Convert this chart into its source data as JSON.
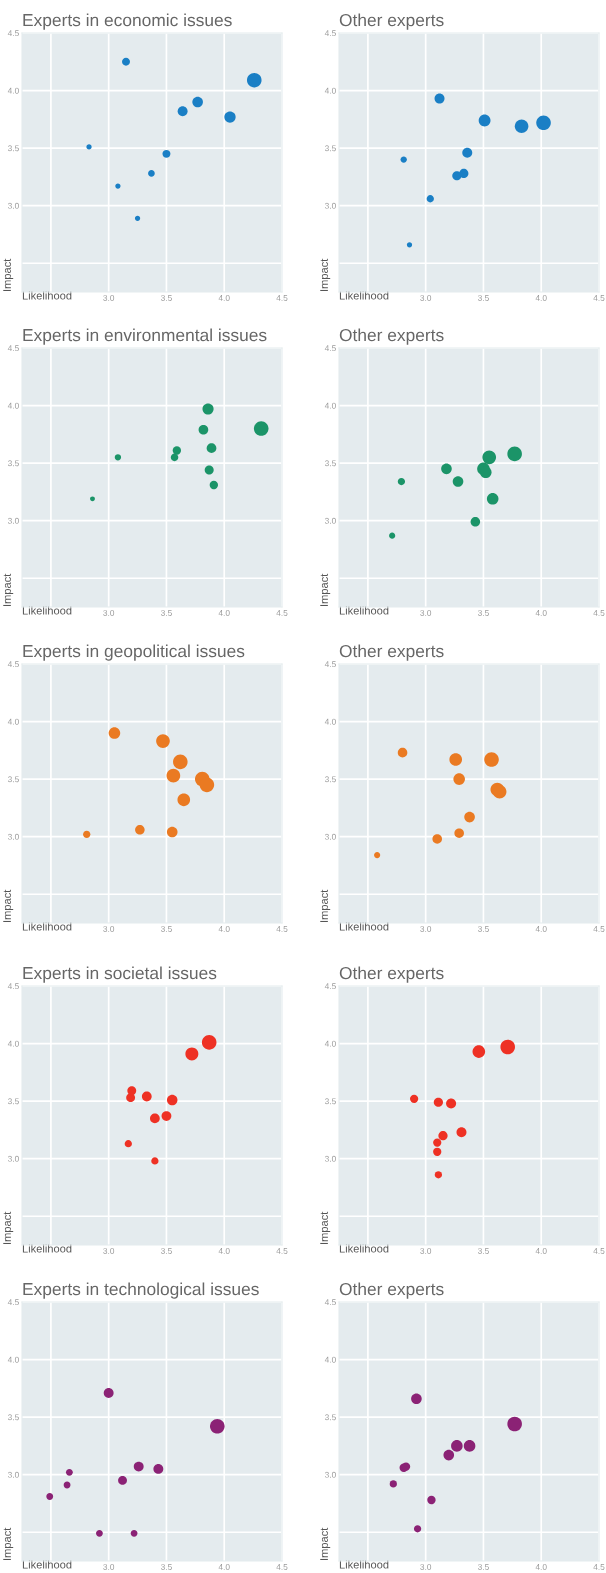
{
  "chart_data": [
    {
      "type": "bubble",
      "title": "Experts in economic issues",
      "xlabel": "Likelihood",
      "ylabel": "Impact",
      "xlim": [
        2.25,
        4.5
      ],
      "ylim": [
        2.25,
        4.5
      ],
      "xticks": [
        {
          "value": 2.5,
          "label": null
        },
        {
          "value": 3.0,
          "label": "3.0"
        },
        {
          "value": 3.5,
          "label": "3.5"
        },
        {
          "value": 4.0,
          "label": "4.0"
        },
        {
          "value": 4.5,
          "label": "4.5"
        }
      ],
      "yticks": [
        {
          "value": 2.5,
          "label": null
        },
        {
          "value": 3.0,
          "label": "3.0"
        },
        {
          "value": 3.5,
          "label": "3.5"
        },
        {
          "value": 4.0,
          "label": "4.0"
        },
        {
          "value": 4.5,
          "label": "4.5"
        }
      ],
      "grid": true,
      "series": [
        {
          "color": "#1a7fc5",
          "x": [
            3.15,
            2.83,
            3.08,
            3.25,
            3.37,
            3.5,
            3.64,
            3.77,
            4.05,
            4.26
          ],
          "values": [
            4.25,
            3.51,
            3.17,
            2.89,
            3.28,
            3.45,
            3.82,
            3.9,
            3.77,
            4.09
          ],
          "sizes": [
            0.3,
            0.13,
            0.13,
            0.13,
            0.21,
            0.3,
            0.46,
            0.53,
            0.6,
            1
          ]
        }
      ]
    },
    {
      "type": "bubble",
      "title": "Other experts",
      "xlabel": "Likelihood",
      "ylabel": "Impact",
      "xlim": [
        2.25,
        4.5
      ],
      "ylim": [
        2.25,
        4.5
      ],
      "xticks": [
        {
          "value": 2.5,
          "label": null
        },
        {
          "value": 3.0,
          "label": "3.0"
        },
        {
          "value": 3.5,
          "label": "3.5"
        },
        {
          "value": 4.0,
          "label": "4.0"
        },
        {
          "value": 4.5,
          "label": "4.5"
        }
      ],
      "yticks": [
        {
          "value": 2.5,
          "label": null
        },
        {
          "value": 3.0,
          "label": "3.0"
        },
        {
          "value": 3.5,
          "label": "3.5"
        },
        {
          "value": 4.0,
          "label": "4.0"
        },
        {
          "value": 4.5,
          "label": "4.5"
        }
      ],
      "grid": true,
      "series": [
        {
          "color": "#1a7fc5",
          "x": [
            2.81,
            2.86,
            3.04,
            3.12,
            3.27,
            3.33,
            3.36,
            3.51,
            3.83,
            4.02
          ],
          "values": [
            3.4,
            2.66,
            3.06,
            3.93,
            3.26,
            3.28,
            3.46,
            3.74,
            3.69,
            3.72
          ],
          "sizes": [
            0.19,
            0.13,
            0.25,
            0.47,
            0.4,
            0.4,
            0.47,
            0.66,
            0.87,
            1
          ]
        }
      ]
    },
    {
      "type": "bubble",
      "title": "Experts in environmental issues",
      "xlabel": "Likelihood",
      "ylabel": "Impact",
      "xlim": [
        2.25,
        4.5
      ],
      "ylim": [
        2.25,
        4.5
      ],
      "xticks": [
        {
          "value": 2.5,
          "label": null
        },
        {
          "value": 3.0,
          "label": "3.0"
        },
        {
          "value": 3.5,
          "label": "3.5"
        },
        {
          "value": 4.0,
          "label": "4.0"
        },
        {
          "value": 4.5,
          "label": "4.5"
        }
      ],
      "yticks": [
        {
          "value": 2.5,
          "label": null
        },
        {
          "value": 3.0,
          "label": "3.0"
        },
        {
          "value": 3.5,
          "label": "3.5"
        },
        {
          "value": 4.0,
          "label": "4.0"
        },
        {
          "value": 4.5,
          "label": "4.5"
        }
      ],
      "grid": true,
      "series": [
        {
          "color": "#1b9468",
          "x": [
            2.86,
            3.08,
            3.57,
            3.59,
            3.82,
            3.86,
            3.89,
            3.87,
            3.91,
            4.32
          ],
          "values": [
            3.19,
            3.55,
            3.55,
            3.61,
            3.79,
            3.97,
            3.63,
            3.44,
            3.31,
            3.8
          ],
          "sizes": [
            0.11,
            0.19,
            0.27,
            0.33,
            0.44,
            0.58,
            0.44,
            0.38,
            0.33,
            1
          ]
        }
      ]
    },
    {
      "type": "bubble",
      "title": "Other experts",
      "xlabel": "Likelihood",
      "ylabel": "Impact",
      "xlim": [
        2.25,
        4.5
      ],
      "ylim": [
        2.25,
        4.5
      ],
      "xticks": [
        {
          "value": 2.5,
          "label": null
        },
        {
          "value": 3.0,
          "label": "3.0"
        },
        {
          "value": 3.5,
          "label": "3.5"
        },
        {
          "value": 4.0,
          "label": "4.0"
        },
        {
          "value": 4.5,
          "label": "4.5"
        }
      ],
      "yticks": [
        {
          "value": 2.5,
          "label": null
        },
        {
          "value": 3.0,
          "label": "3.0"
        },
        {
          "value": 3.5,
          "label": "3.5"
        },
        {
          "value": 4.0,
          "label": "4.0"
        },
        {
          "value": 4.5,
          "label": "4.5"
        }
      ],
      "grid": true,
      "series": [
        {
          "color": "#1b9468",
          "x": [
            2.71,
            2.79,
            3.18,
            3.28,
            3.43,
            3.5,
            3.52,
            3.55,
            3.58,
            3.77
          ],
          "values": [
            2.87,
            3.34,
            3.45,
            3.34,
            2.99,
            3.45,
            3.42,
            3.55,
            3.19,
            3.58
          ],
          "sizes": [
            0.18,
            0.25,
            0.53,
            0.53,
            0.43,
            0.75,
            0.63,
            0.88,
            0.63,
            1
          ]
        }
      ]
    },
    {
      "type": "bubble",
      "title": "Experts in geopolitical issues",
      "xlabel": "Likelihood",
      "ylabel": "Impact",
      "xlim": [
        2.25,
        4.5
      ],
      "ylim": [
        2.25,
        4.5
      ],
      "xticks": [
        {
          "value": 2.5,
          "label": null
        },
        {
          "value": 3.0,
          "label": "3.0"
        },
        {
          "value": 3.5,
          "label": "3.5"
        },
        {
          "value": 4.0,
          "label": "4.0"
        },
        {
          "value": 4.5,
          "label": "4.5"
        }
      ],
      "yticks": [
        {
          "value": 2.5,
          "label": null
        },
        {
          "value": 3.0,
          "label": "3.0"
        },
        {
          "value": 3.5,
          "label": "3.5"
        },
        {
          "value": 4.0,
          "label": "4.0"
        },
        {
          "value": 4.5,
          "label": "4.5"
        }
      ],
      "grid": true,
      "series": [
        {
          "color": "#ea7a22",
          "x": [
            2.81,
            3.05,
            3.27,
            3.47,
            3.55,
            3.56,
            3.62,
            3.65,
            3.81,
            3.85
          ],
          "values": [
            3.02,
            3.9,
            3.06,
            3.83,
            3.04,
            3.53,
            3.65,
            3.32,
            3.5,
            3.45
          ],
          "sizes": [
            0.25,
            0.63,
            0.43,
            0.88,
            0.53,
            0.88,
            1,
            0.75,
            1,
            1
          ]
        }
      ]
    },
    {
      "type": "bubble",
      "title": "Other experts",
      "xlabel": "Likelihood",
      "ylabel": "Impact",
      "xlim": [
        2.25,
        4.5
      ],
      "ylim": [
        2.25,
        4.5
      ],
      "xticks": [
        {
          "value": 2.5,
          "label": null
        },
        {
          "value": 3.0,
          "label": "3.0"
        },
        {
          "value": 3.5,
          "label": "3.5"
        },
        {
          "value": 4.0,
          "label": "4.0"
        },
        {
          "value": 4.5,
          "label": "4.5"
        }
      ],
      "yticks": [
        {
          "value": 2.5,
          "label": null
        },
        {
          "value": 3.0,
          "label": "3.0"
        },
        {
          "value": 3.5,
          "label": "3.5"
        },
        {
          "value": 4.0,
          "label": "4.0"
        },
        {
          "value": 4.5,
          "label": "4.5"
        }
      ],
      "grid": true,
      "series": [
        {
          "color": "#ea7a22",
          "x": [
            2.58,
            2.8,
            3.1,
            3.29,
            3.26,
            3.29,
            3.38,
            3.57,
            3.62,
            3.64
          ],
          "values": [
            2.84,
            3.73,
            2.98,
            3.03,
            3.67,
            3.5,
            3.17,
            3.67,
            3.41,
            3.39
          ],
          "sizes": [
            0.18,
            0.43,
            0.43,
            0.43,
            0.75,
            0.63,
            0.53,
            1,
            0.88,
            0.88
          ]
        }
      ]
    },
    {
      "type": "bubble",
      "title": "Experts in societal issues",
      "xlabel": "Likelihood",
      "ylabel": "Impact",
      "xlim": [
        2.25,
        4.5
      ],
      "ylim": [
        2.25,
        4.5
      ],
      "xticks": [
        {
          "value": 2.5,
          "label": null
        },
        {
          "value": 3.0,
          "label": "3.0"
        },
        {
          "value": 3.5,
          "label": "3.5"
        },
        {
          "value": 4.0,
          "label": "4.0"
        },
        {
          "value": 4.5,
          "label": "4.5"
        }
      ],
      "yticks": [
        {
          "value": 2.5,
          "label": null
        },
        {
          "value": 3.0,
          "label": "3.0"
        },
        {
          "value": 3.5,
          "label": "3.5"
        },
        {
          "value": 4.0,
          "label": "4.0"
        },
        {
          "value": 4.5,
          "label": "4.5"
        }
      ],
      "grid": true,
      "series": [
        {
          "color": "#ee3124",
          "x": [
            3.17,
            3.4,
            3.19,
            3.2,
            3.33,
            3.4,
            3.5,
            3.55,
            3.72,
            3.87
          ],
          "values": [
            3.13,
            2.98,
            3.53,
            3.59,
            3.54,
            3.35,
            3.37,
            3.51,
            3.91,
            4.01
          ],
          "sizes": [
            0.25,
            0.25,
            0.37,
            0.37,
            0.45,
            0.45,
            0.45,
            0.52,
            0.79,
            1
          ]
        }
      ]
    },
    {
      "type": "bubble",
      "title": "Other experts",
      "xlabel": "Likelihood",
      "ylabel": "Impact",
      "xlim": [
        2.25,
        4.5
      ],
      "ylim": [
        2.25,
        4.5
      ],
      "xticks": [
        {
          "value": 2.5,
          "label": null
        },
        {
          "value": 3.0,
          "label": "3.0"
        },
        {
          "value": 3.5,
          "label": "3.5"
        },
        {
          "value": 4.0,
          "label": "4.0"
        },
        {
          "value": 4.5,
          "label": "4.5"
        }
      ],
      "yticks": [
        {
          "value": 2.5,
          "label": null
        },
        {
          "value": 3.0,
          "label": "3.0"
        },
        {
          "value": 3.5,
          "label": "3.5"
        },
        {
          "value": 4.0,
          "label": "4.0"
        },
        {
          "value": 4.5,
          "label": "4.5"
        }
      ],
      "grid": true,
      "series": [
        {
          "color": "#ee3124",
          "x": [
            2.9,
            3.11,
            3.1,
            3.1,
            3.15,
            3.11,
            3.22,
            3.31,
            3.46,
            3.71
          ],
          "values": [
            3.52,
            2.86,
            3.06,
            3.14,
            3.2,
            3.49,
            3.48,
            3.23,
            3.93,
            3.97
          ],
          "sizes": [
            0.32,
            0.25,
            0.32,
            0.32,
            0.4,
            0.4,
            0.47,
            0.47,
            0.75,
            1
          ]
        }
      ]
    },
    {
      "type": "bubble",
      "title": "Experts in technological issues",
      "xlabel": "Likelihood",
      "ylabel": "Impact",
      "xlim": [
        2.25,
        4.5
      ],
      "ylim": [
        2.25,
        4.5
      ],
      "xticks": [
        {
          "value": 2.5,
          "label": null
        },
        {
          "value": 3.0,
          "label": "3.0"
        },
        {
          "value": 3.5,
          "label": "3.5"
        },
        {
          "value": 4.0,
          "label": "4.0"
        },
        {
          "value": 4.5,
          "label": "4.5"
        }
      ],
      "yticks": [
        {
          "value": 2.5,
          "label": null
        },
        {
          "value": 3.0,
          "label": "3.0"
        },
        {
          "value": 3.5,
          "label": "3.5"
        },
        {
          "value": 4.0,
          "label": "4.0"
        },
        {
          "value": 4.5,
          "label": "4.5"
        }
      ],
      "grid": true,
      "series": [
        {
          "color": "#8b2275",
          "x": [
            2.49,
            2.64,
            2.66,
            2.92,
            3.0,
            3.12,
            3.22,
            3.26,
            3.43,
            3.94
          ],
          "values": [
            2.81,
            2.91,
            3.02,
            2.49,
            3.71,
            2.95,
            2.49,
            3.07,
            3.05,
            3.42
          ],
          "sizes": [
            0.22,
            0.22,
            0.22,
            0.22,
            0.46,
            0.37,
            0.22,
            0.46,
            0.46,
            1
          ]
        }
      ]
    },
    {
      "type": "bubble",
      "title": "Other experts",
      "xlabel": "Likelihood",
      "ylabel": "Impact",
      "xlim": [
        2.25,
        4.5
      ],
      "ylim": [
        2.25,
        4.5
      ],
      "xticks": [
        {
          "value": 2.5,
          "label": null
        },
        {
          "value": 3.0,
          "label": "3.0"
        },
        {
          "value": 3.5,
          "label": "3.5"
        },
        {
          "value": 4.0,
          "label": "4.0"
        },
        {
          "value": 4.5,
          "label": "4.5"
        }
      ],
      "yticks": [
        {
          "value": 2.5,
          "label": null
        },
        {
          "value": 3.0,
          "label": "3.0"
        },
        {
          "value": 3.5,
          "label": "3.5"
        },
        {
          "value": 4.0,
          "label": "4.0"
        },
        {
          "value": 4.5,
          "label": "4.5"
        }
      ],
      "grid": true,
      "series": [
        {
          "color": "#8b2275",
          "x": [
            2.72,
            2.81,
            2.83,
            2.92,
            2.93,
            3.05,
            3.2,
            3.27,
            3.38,
            3.77
          ],
          "values": [
            2.92,
            3.06,
            3.07,
            3.66,
            2.53,
            2.78,
            3.17,
            3.25,
            3.25,
            3.44
          ],
          "sizes": [
            0.25,
            0.33,
            0.33,
            0.53,
            0.25,
            0.33,
            0.53,
            0.63,
            0.63,
            1
          ]
        }
      ]
    }
  ]
}
